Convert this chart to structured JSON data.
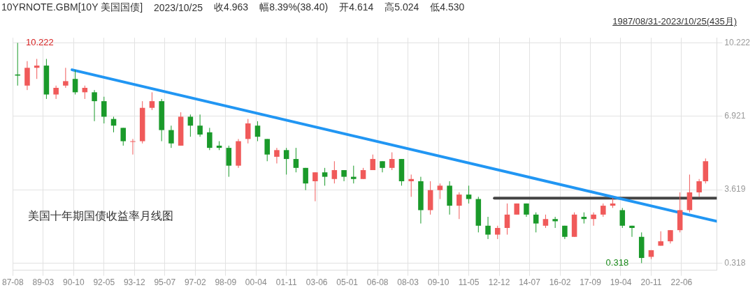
{
  "chart_data": {
    "type": "candlestick",
    "title": "10YRNOTE.GBM[10Y 美国国债]",
    "subtitle": "1987/08/31-2023/10/25(435月)",
    "annotations": [
      "2023/10/25",
      "收4.963",
      "幅8.39%(38.40)",
      "开4.614",
      "高5.024",
      "低4.530",
      "美国十年期国债收益率月线图",
      {
        "text": "10.222",
        "x": "1987-10",
        "y": 10.222
      },
      {
        "text": "0.318",
        "x": "2020-03",
        "y": 0.318
      }
    ],
    "x": [
      "1987-11",
      "1988-05",
      "1988-11",
      "1989-05",
      "1989-11",
      "1990-05",
      "1990-11",
      "1991-05",
      "1991-11",
      "1992-05",
      "1992-11",
      "1993-05",
      "1993-11",
      "1994-05",
      "1994-11",
      "1995-05",
      "1995-11",
      "1996-05",
      "1996-11",
      "1997-05",
      "1997-11",
      "1998-05",
      "1998-11",
      "1999-05",
      "1999-11",
      "2000-05",
      "2000-11",
      "2001-05",
      "2001-11",
      "2002-05",
      "2002-11",
      "2003-05",
      "2003-11",
      "2004-05",
      "2004-11",
      "2005-05",
      "2005-11",
      "2006-05",
      "2006-11",
      "2007-05",
      "2007-11",
      "2008-05",
      "2008-11",
      "2009-05",
      "2009-11",
      "2010-05",
      "2010-11",
      "2011-05",
      "2011-11",
      "2012-05",
      "2012-11",
      "2013-05",
      "2013-11",
      "2014-05",
      "2014-11",
      "2015-05",
      "2015-11",
      "2016-05",
      "2016-11",
      "2017-05",
      "2017-11",
      "2018-05",
      "2018-11",
      "2019-05",
      "2019-11",
      "2020-05",
      "2020-11",
      "2021-05",
      "2021-11",
      "2022-05",
      "2022-11",
      "2023-05",
      "2023-09"
    ],
    "ohlc": [
      [
        8.8,
        10.222,
        8.3,
        8.75
      ],
      [
        8.3,
        9.4,
        8.1,
        9.1
      ],
      [
        9.1,
        9.5,
        8.6,
        9.2
      ],
      [
        9.2,
        9.5,
        7.7,
        7.9
      ],
      [
        7.9,
        8.3,
        7.7,
        8.2
      ],
      [
        8.3,
        9.1,
        8.2,
        8.5
      ],
      [
        8.6,
        9.0,
        7.9,
        8.0
      ],
      [
        8.0,
        8.3,
        7.7,
        8.2
      ],
      [
        8.0,
        8.1,
        6.7,
        7.6
      ],
      [
        7.6,
        7.8,
        6.6,
        6.9
      ],
      [
        6.8,
        6.9,
        6.2,
        6.5
      ],
      [
        6.4,
        6.4,
        5.6,
        5.8
      ],
      [
        5.8,
        5.9,
        5.2,
        5.8
      ],
      [
        5.8,
        7.6,
        5.7,
        7.3
      ],
      [
        7.3,
        8.0,
        7.2,
        7.6
      ],
      [
        7.6,
        7.7,
        5.8,
        6.3
      ],
      [
        6.3,
        6.5,
        5.5,
        5.7
      ],
      [
        5.6,
        7.1,
        5.6,
        6.9
      ],
      [
        6.9,
        7.0,
        6.0,
        6.5
      ],
      [
        6.5,
        7.0,
        6.0,
        6.1
      ],
      [
        6.2,
        6.4,
        5.4,
        5.5
      ],
      [
        5.6,
        5.8,
        5.4,
        5.5
      ],
      [
        5.5,
        5.6,
        4.2,
        4.7
      ],
      [
        4.7,
        5.9,
        4.6,
        5.8
      ],
      [
        5.9,
        6.8,
        5.7,
        6.6
      ],
      [
        6.5,
        6.7,
        5.8,
        6.0
      ],
      [
        5.9,
        5.9,
        4.9,
        5.2
      ],
      [
        5.1,
        5.5,
        4.8,
        5.4
      ],
      [
        5.4,
        5.5,
        4.3,
        5.0
      ],
      [
        5.0,
        5.5,
        4.4,
        4.6
      ],
      [
        4.6,
        4.6,
        3.6,
        3.9
      ],
      [
        4.0,
        4.4,
        3.1,
        4.4
      ],
      [
        4.4,
        4.6,
        3.8,
        4.2
      ],
      [
        4.1,
        4.9,
        3.9,
        4.5
      ],
      [
        4.5,
        4.5,
        4.0,
        4.2
      ],
      [
        4.2,
        4.7,
        3.9,
        4.1
      ],
      [
        4.1,
        4.6,
        4.1,
        4.5
      ],
      [
        4.5,
        5.2,
        4.5,
        5.0
      ],
      [
        4.9,
        4.9,
        4.4,
        4.6
      ],
      [
        4.6,
        5.3,
        4.5,
        5.0
      ],
      [
        5.0,
        5.0,
        3.8,
        4.0
      ],
      [
        4.0,
        4.3,
        3.3,
        4.1
      ],
      [
        4.0,
        4.2,
        2.1,
        2.7
      ],
      [
        2.7,
        4.0,
        2.5,
        3.6
      ],
      [
        3.6,
        3.9,
        3.2,
        3.8
      ],
      [
        3.8,
        4.0,
        2.5,
        2.9
      ],
      [
        2.9,
        3.5,
        2.3,
        3.4
      ],
      [
        3.4,
        3.8,
        3.0,
        3.2
      ],
      [
        3.2,
        3.3,
        1.7,
        2.0
      ],
      [
        2.0,
        2.4,
        1.4,
        1.6
      ],
      [
        1.6,
        2.0,
        1.4,
        1.9
      ],
      [
        1.9,
        3.0,
        1.6,
        2.5
      ],
      [
        2.5,
        3.0,
        2.5,
        3.0
      ],
      [
        3.0,
        3.0,
        2.4,
        2.5
      ],
      [
        2.5,
        2.6,
        1.7,
        2.1
      ],
      [
        2.0,
        2.5,
        1.9,
        2.3
      ],
      [
        2.3,
        2.4,
        1.9,
        2.2
      ],
      [
        2.0,
        2.0,
        1.4,
        1.5
      ],
      [
        1.5,
        2.6,
        1.5,
        2.5
      ],
      [
        2.4,
        2.6,
        2.1,
        2.3
      ],
      [
        2.3,
        2.6,
        2.0,
        2.5
      ],
      [
        2.5,
        3.0,
        2.4,
        2.9
      ],
      [
        2.9,
        3.25,
        2.8,
        3.0
      ],
      [
        2.7,
        2.8,
        1.9,
        2.0
      ],
      [
        2.0,
        2.0,
        1.5,
        1.9
      ],
      [
        1.5,
        1.7,
        0.318,
        0.55
      ],
      [
        0.6,
        0.9,
        0.5,
        0.9
      ],
      [
        1.1,
        1.75,
        1.1,
        1.3
      ],
      [
        1.3,
        1.8,
        1.2,
        1.8
      ],
      [
        1.8,
        3.5,
        1.7,
        2.7
      ],
      [
        2.7,
        4.3,
        2.6,
        3.5
      ],
      [
        3.5,
        4.1,
        3.3,
        4.0
      ],
      [
        4.0,
        5.024,
        3.9,
        4.9
      ]
    ],
    "series": [
      {
        "type": "line",
        "color": "#2196f3",
        "x": [
          "1990-09",
          "2024-04"
        ],
        "values": [
          9.01,
          2.2
        ]
      },
      {
        "type": "line",
        "color": "#444444",
        "x": [
          "2012-09",
          "2024-04"
        ],
        "values": [
          3.24,
          3.24
        ]
      }
    ],
    "xlim": [
      "1987-08",
      "2024-04"
    ],
    "xticks": [
      {
        "value": "1987-08",
        "label": "87-08"
      },
      {
        "value": "1989-03",
        "label": "89-03"
      },
      {
        "value": "1990-10",
        "label": "90-10"
      },
      {
        "value": "1992-05",
        "label": "92-05"
      },
      {
        "value": "1993-12",
        "label": "93-12"
      },
      {
        "value": "1995-07",
        "label": "95-07"
      },
      {
        "value": "1997-02",
        "label": "97-02"
      },
      {
        "value": "1998-09",
        "label": "98-09"
      },
      {
        "value": "2000-04",
        "label": "00-04"
      },
      {
        "value": "2001-11",
        "label": "01-11"
      },
      {
        "value": "2003-06",
        "label": "03-06"
      },
      {
        "value": "2005-01",
        "label": "05-01"
      },
      {
        "value": "2006-08",
        "label": "06-08"
      },
      {
        "value": "2008-03",
        "label": "08-03"
      },
      {
        "value": "2009-10",
        "label": "09-10"
      },
      {
        "value": "2011-05",
        "label": "11-05"
      },
      {
        "value": "2012-12",
        "label": "12-12"
      },
      {
        "value": "2014-07",
        "label": "14-07"
      },
      {
        "value": "2016-02",
        "label": "16-02"
      },
      {
        "value": "2017-09",
        "label": "17-09"
      },
      {
        "value": "2019-04",
        "label": "19-04"
      },
      {
        "value": "2020-11",
        "label": "20-11"
      },
      {
        "value": "2022-06",
        "label": "22-06"
      }
    ],
    "ylim": [
      0,
      10.45
    ],
    "yticks": [
      0.318,
      3.619,
      6.921,
      10.222
    ],
    "grid": true,
    "legend": false
  }
}
